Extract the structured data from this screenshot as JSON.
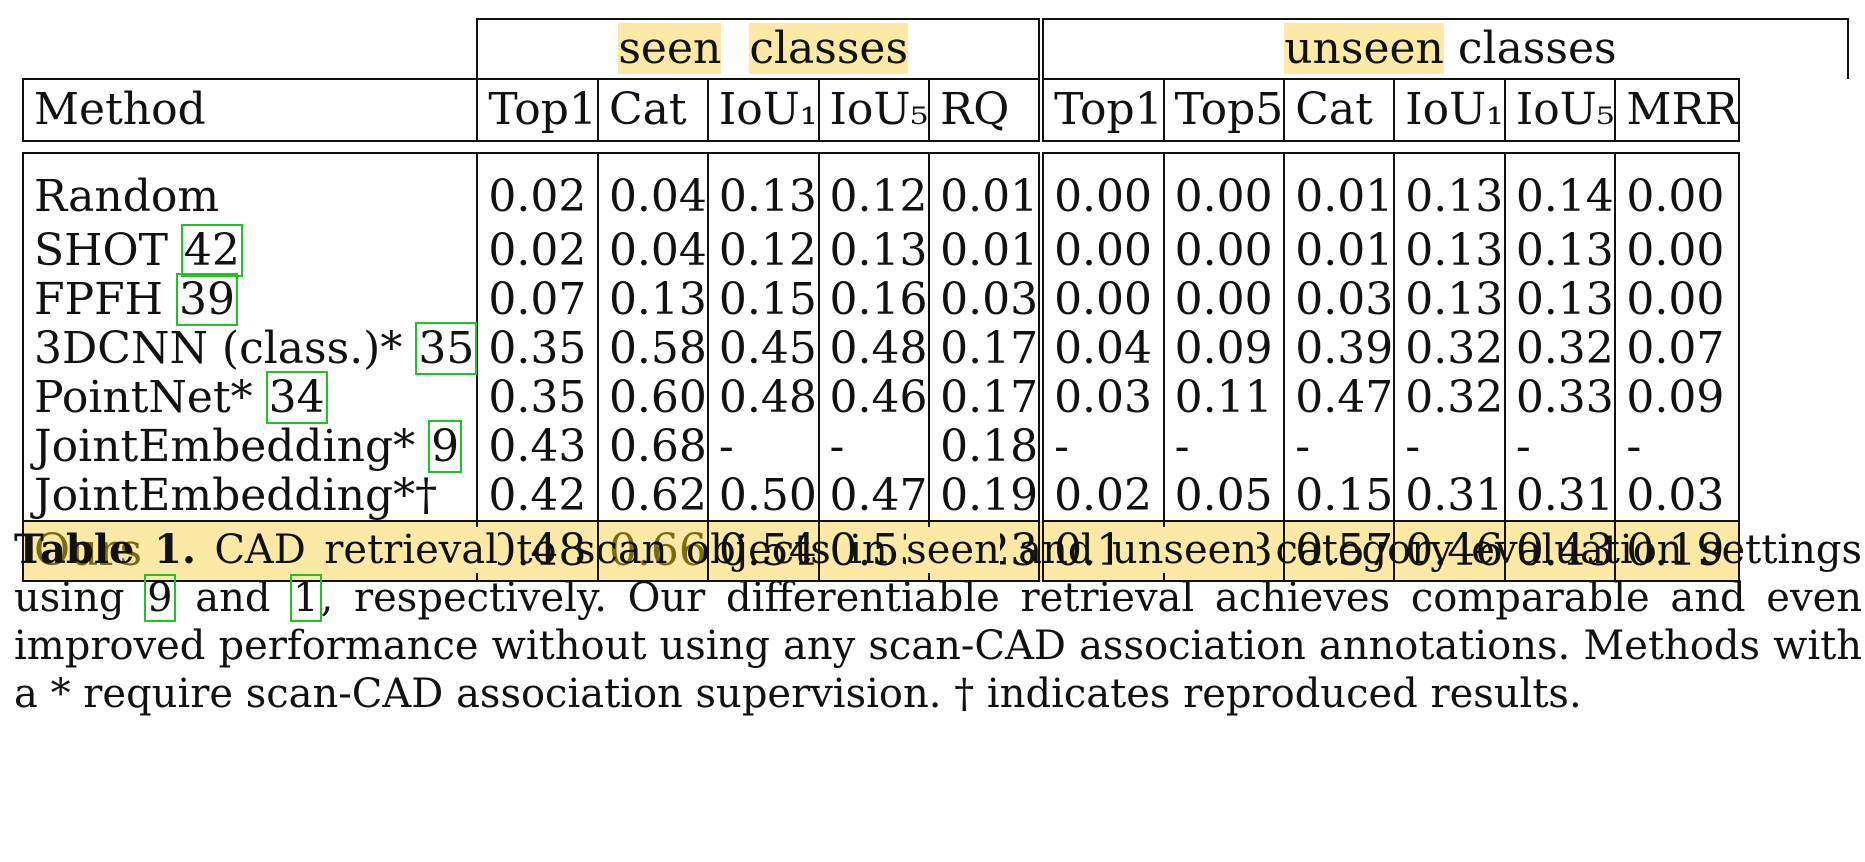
{
  "table": {
    "groups": {
      "seen_word1": "seen",
      "seen_word2": "classes",
      "unseen_word1": "unseen",
      "unseen_word2": "classes"
    },
    "columns": {
      "method": "Method",
      "seen": [
        "Top1",
        "Cat",
        "IoU₁",
        "IoU₅",
        "RQ"
      ],
      "unseen": [
        "Top1",
        "Top5",
        "Cat",
        "IoU₁",
        "IoU₅",
        "MRR"
      ]
    },
    "rows": [
      {
        "method": "Random",
        "ref": "",
        "seen": [
          "0.02",
          "0.04",
          "0.13",
          "0.12",
          "0.01"
        ],
        "unseen": [
          "0.00",
          "0.00",
          "0.01",
          "0.13",
          "0.14",
          "0.00"
        ]
      },
      {
        "method": "SHOT ",
        "ref": "42",
        "seen": [
          "0.02",
          "0.04",
          "0.12",
          "0.13",
          "0.01"
        ],
        "unseen": [
          "0.00",
          "0.00",
          "0.01",
          "0.13",
          "0.13",
          "0.00"
        ]
      },
      {
        "method": "FPFH ",
        "ref": "39",
        "seen": [
          "0.07",
          "0.13",
          "0.15",
          "0.16",
          "0.03"
        ],
        "unseen": [
          "0.00",
          "0.00",
          "0.03",
          "0.13",
          "0.13",
          "0.00"
        ]
      },
      {
        "method": "3DCNN (class.)* ",
        "ref": "35",
        "seen": [
          "0.35",
          "0.58",
          "0.45",
          "0.48",
          "0.17"
        ],
        "unseen": [
          "0.04",
          "0.09",
          "0.39",
          "0.32",
          "0.32",
          "0.07"
        ]
      },
      {
        "method": "PointNet* ",
        "ref": "34",
        "seen": [
          "0.35",
          "0.60",
          "0.48",
          "0.46",
          "0.17"
        ],
        "unseen": [
          "0.03",
          "0.11",
          "0.47",
          "0.32",
          "0.33",
          "0.09"
        ]
      },
      {
        "method": "JointEmbedding* ",
        "ref": "9",
        "seen": [
          "0.43",
          "0.68",
          "-",
          "-",
          "0.18"
        ],
        "unseen": [
          "-",
          "-",
          "-",
          "-",
          "-",
          "-"
        ]
      },
      {
        "method": "JointEmbedding*†",
        "ref": "",
        "seen": [
          "0.42",
          "0.62",
          "0.50",
          "0.47",
          "0.19"
        ],
        "unseen": [
          "0.02",
          "0.05",
          "0.15",
          "0.31",
          "0.31",
          "0.03"
        ]
      }
    ],
    "ours": {
      "method": "Ours",
      "seen": [
        "0.48",
        "0.66",
        "0.54",
        "0.53",
        "0.23"
      ],
      "unseen": [
        "0.11",
        "0.28",
        "0.57",
        "0.46",
        "0.43",
        "0.19"
      ]
    }
  },
  "caption": {
    "label": "Table 1.",
    "hl1": "CAD retrieval",
    "t1": " to scan objects in ",
    "hl2": "seen",
    "t2": " and ",
    "hl3": "unseen",
    "t3": " category evaluation settings using ",
    "ref1": "9",
    "t4": " and ",
    "ref2": "1",
    "t5": ", respectively. Our differentiable retrieval achieves comparable and even improved performance without using any scan-CAD association annotations. Methods with a * require scan-CAD association supervision. † indicates reproduced results."
  },
  "colors": {
    "highlight": "#fde9a6",
    "ref_box": "#22c12b",
    "ours_text": "#7a6a10"
  }
}
